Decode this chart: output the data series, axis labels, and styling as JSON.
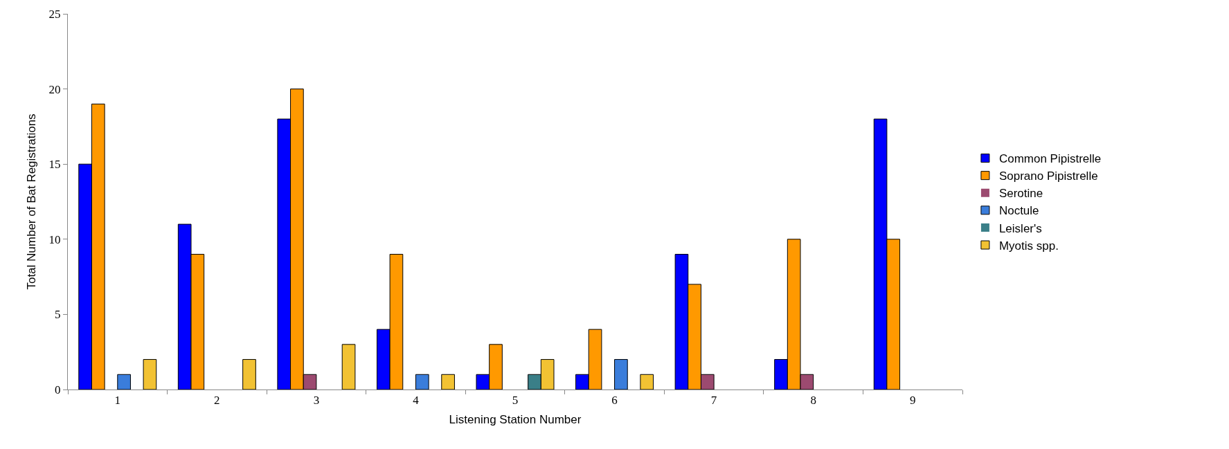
{
  "chart_data": {
    "type": "bar",
    "xlabel": "Listening Station Number",
    "ylabel": "Total Number of Bat Registrations",
    "categories": [
      "1",
      "2",
      "3",
      "4",
      "5",
      "6",
      "7",
      "8",
      "9"
    ],
    "series": [
      {
        "name": "Common Pipistrelle",
        "color": "#0000ff",
        "values": [
          15,
          11,
          18,
          4,
          1,
          1,
          9,
          2,
          18
        ]
      },
      {
        "name": "Soprano Pipistrelle",
        "color": "#ff9900",
        "values": [
          19,
          9,
          20,
          9,
          3,
          4,
          7,
          10,
          10
        ]
      },
      {
        "name": "Serotine",
        "color": "#9c4a70",
        "values": [
          0,
          0,
          1,
          0,
          0,
          0,
          1,
          1,
          0
        ]
      },
      {
        "name": "Noctule",
        "color": "#3a7ddb",
        "values": [
          1,
          0,
          0,
          1,
          0,
          2,
          0,
          0,
          0
        ]
      },
      {
        "name": "Leisler's",
        "color": "#3a7f88",
        "values": [
          0,
          0,
          0,
          0,
          1,
          0,
          0,
          0,
          0
        ]
      },
      {
        "name": "Myotis spp.",
        "color": "#f2c233",
        "values": [
          2,
          2,
          3,
          1,
          2,
          1,
          0,
          0,
          0
        ]
      }
    ],
    "ylim": [
      0,
      25
    ],
    "yticks": [
      0,
      5,
      10,
      15,
      20,
      25
    ],
    "grid": false,
    "legend": "right"
  }
}
